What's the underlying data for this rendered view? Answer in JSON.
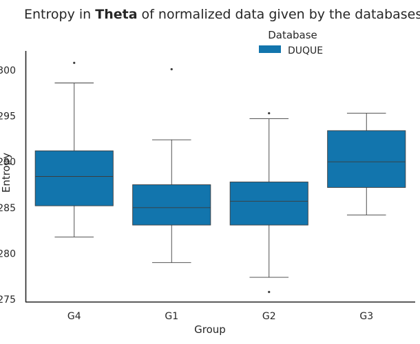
{
  "chart_data": {
    "type": "box",
    "title": {
      "prefix": "Entropy in ",
      "emphasis": "Theta",
      "suffix": " of normalized data given by the databases"
    },
    "xlabel": "Group",
    "ylabel": "Entropy",
    "categories": [
      "G4",
      "G1",
      "G2",
      "G3"
    ],
    "ylim": [
      0.2747,
      0.3021
    ],
    "yticks": [
      0.275,
      0.28,
      0.285,
      0.29,
      0.295,
      0.3
    ],
    "ytick_labels": [
      "275",
      "280",
      "285",
      "290",
      "295",
      "300"
    ],
    "legend": {
      "title": "Database",
      "entries": [
        "DUQUE"
      ],
      "position": "top-center"
    },
    "grid": false,
    "series": [
      {
        "name": "DUQUE",
        "color": "#1275ad",
        "boxes": [
          {
            "category": "G4",
            "whisker_low": 0.2818,
            "q1": 0.2852,
            "median": 0.2884,
            "q3": 0.2912,
            "whisker_high": 0.2986,
            "outliers": [
              0.3008
            ]
          },
          {
            "category": "G1",
            "whisker_low": 0.279,
            "q1": 0.2831,
            "median": 0.285,
            "q3": 0.2875,
            "whisker_high": 0.2924,
            "outliers": [
              0.3001
            ]
          },
          {
            "category": "G2",
            "whisker_low": 0.2774,
            "q1": 0.2831,
            "median": 0.2857,
            "q3": 0.2878,
            "whisker_high": 0.2947,
            "outliers": [
              0.2953,
              0.2758
            ]
          },
          {
            "category": "G3",
            "whisker_low": 0.2842,
            "q1": 0.2872,
            "median": 0.29,
            "q3": 0.2934,
            "whisker_high": 0.2953,
            "outliers": []
          }
        ]
      }
    ]
  }
}
